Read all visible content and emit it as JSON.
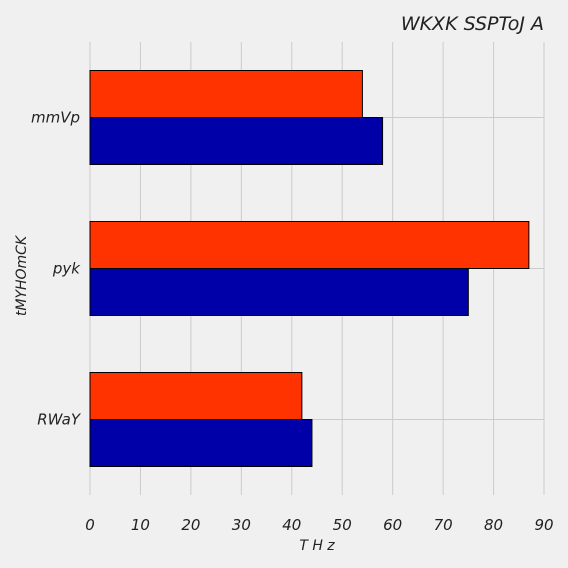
{
  "chart_data": {
    "type": "bar",
    "orientation": "horizontal",
    "title": "WKXK SSPToJ A",
    "xlabel": "T H z",
    "ylabel": "tMYHOmCK",
    "categories": [
      "mmVp",
      "pyk",
      "RWaY"
    ],
    "series": [
      {
        "values": [
          54,
          87,
          42
        ],
        "color": "#ff3300"
      },
      {
        "values": [
          58,
          75,
          44
        ],
        "color": "#0000a8"
      }
    ],
    "xlim": [
      0,
      90
    ],
    "xticks": [
      0,
      10,
      20,
      30,
      40,
      50,
      60,
      70,
      80,
      90
    ],
    "grid": true,
    "legend": "none"
  }
}
